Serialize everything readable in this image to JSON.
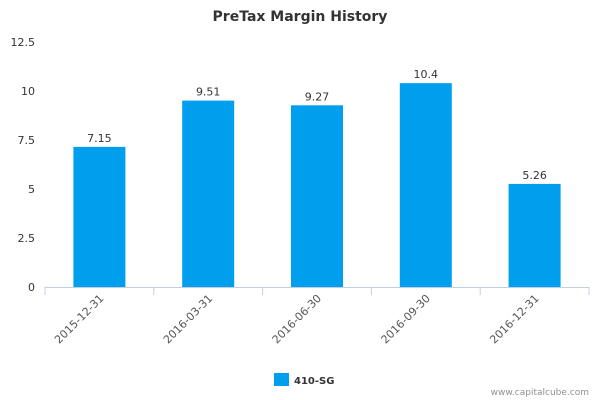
{
  "chart_data": {
    "type": "bar",
    "title": "PreTax Margin History",
    "categories": [
      "2015-12-31",
      "2016-03-31",
      "2016-06-30",
      "2016-09-30",
      "2016-12-31"
    ],
    "series": [
      {
        "name": "410-SG",
        "values": [
          7.15,
          9.51,
          9.27,
          10.4,
          5.26
        ],
        "labels": [
          "7.15",
          "9.51",
          "9.27",
          "10.4",
          "5.26"
        ],
        "color": "#009FEE"
      }
    ],
    "yticks": [
      "0",
      "2.5",
      "5",
      "7.5",
      "10",
      "12.5"
    ],
    "ylim": [
      0,
      12.5
    ],
    "grid": false,
    "legend": "bottom-center",
    "xlabel": "",
    "ylabel": ""
  },
  "credit": "www.capitalcube.com"
}
